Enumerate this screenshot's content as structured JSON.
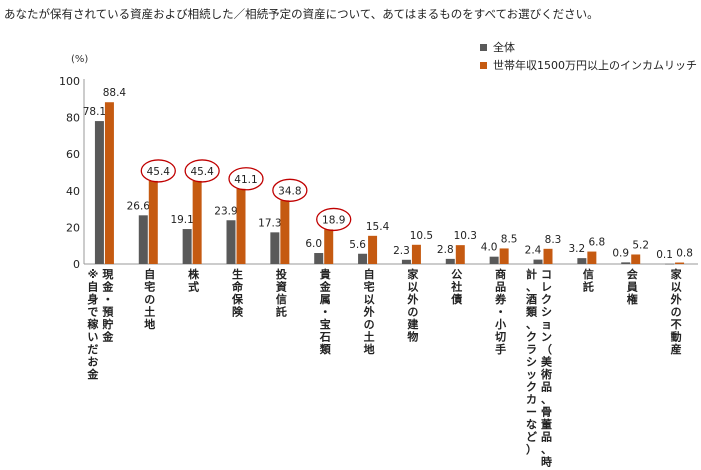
{
  "question": "あなたが保有されている資産および相続した／相続予定の資産について、あてはまるものをすべてお選びください。",
  "colors": {
    "all": "#595959",
    "rich": "#c55a11",
    "circle": "#c00000"
  },
  "chart_data": {
    "type": "bar",
    "unit_label": "(%)",
    "ylim": [
      0,
      100
    ],
    "yticks": [
      0,
      20,
      40,
      60,
      80,
      100
    ],
    "categories": [
      {
        "lines": [
          "現金・預貯金",
          "※自身で稼いだお金"
        ]
      },
      {
        "lines": [
          "自宅の土地"
        ]
      },
      {
        "lines": [
          "株式"
        ]
      },
      {
        "lines": [
          "生命保険"
        ]
      },
      {
        "lines": [
          "投資信託"
        ]
      },
      {
        "lines": [
          "貴金属・宝石類"
        ]
      },
      {
        "lines": [
          "自宅以外の土地"
        ]
      },
      {
        "lines": [
          "家以外の建物"
        ]
      },
      {
        "lines": [
          "公社債"
        ]
      },
      {
        "lines": [
          "商品券・小切手"
        ]
      },
      {
        "lines": [
          "コレクション（美術品、骨董品、時",
          "計、酒類、クラシックカーなど）"
        ]
      },
      {
        "lines": [
          "信託"
        ]
      },
      {
        "lines": [
          "会員権"
        ]
      },
      {
        "lines": [
          "家以外の不動産"
        ]
      }
    ],
    "series": [
      {
        "name": "全体",
        "values": [
          78.1,
          26.6,
          19.1,
          23.9,
          17.3,
          6.0,
          5.6,
          2.3,
          2.8,
          4.0,
          2.4,
          3.2,
          0.9,
          0.1
        ]
      },
      {
        "name": "世帯年収1500万円以上のインカムリッチ",
        "values": [
          88.4,
          45.4,
          45.4,
          41.1,
          34.8,
          18.9,
          15.4,
          10.5,
          10.3,
          8.5,
          8.3,
          6.8,
          5.2,
          0.8
        ]
      }
    ],
    "value_labels": [
      [
        "78.1",
        "26.6",
        "19.1",
        "23.9",
        "17.3",
        "6.0",
        "5.6",
        "2.3",
        "2.8",
        "4.0",
        "2.4",
        "3.2",
        "0.9",
        "0.1"
      ],
      [
        "88.4",
        "45.4",
        "45.4",
        "41.1",
        "34.8",
        "18.9",
        "15.4",
        "10.5",
        "10.3",
        "8.5",
        "8.3",
        "6.8",
        "5.2",
        "0.8"
      ]
    ],
    "highlighted_indices": [
      1,
      2,
      3,
      4,
      5
    ]
  }
}
